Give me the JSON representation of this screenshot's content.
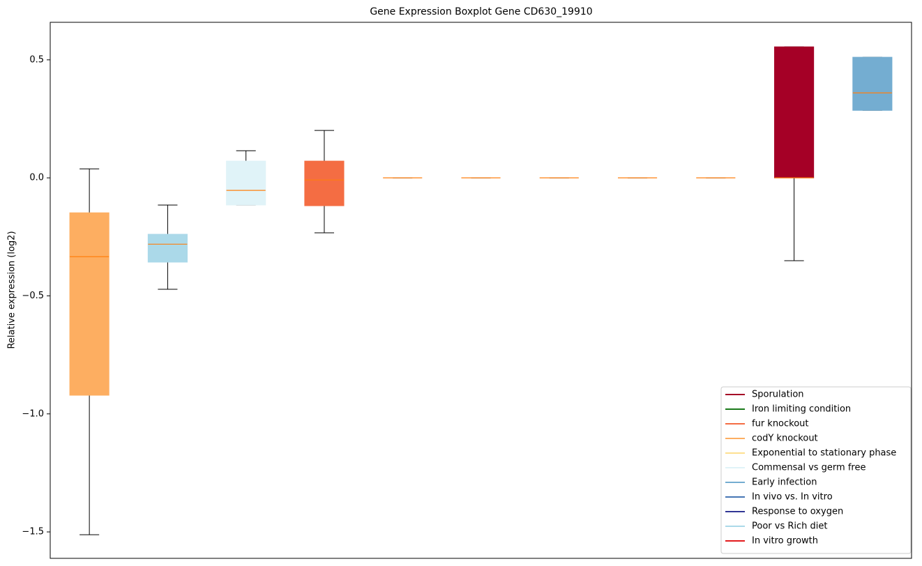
{
  "chart_data": {
    "type": "boxplot",
    "title": "Gene Expression Boxplot Gene CD630_19910",
    "y_label": "Relative expression (log2)",
    "ylim": [
      -1.612,
      0.659
    ],
    "yticks": [
      {
        "value": -1.5,
        "label": "−1.5"
      },
      {
        "value": -1.0,
        "label": "−1.0"
      },
      {
        "value": -0.5,
        "label": "−0.5"
      },
      {
        "value": 0,
        "label": "0.0"
      },
      0.5
    ],
    "median_color": "#ff7f0e",
    "boxes": [
      {
        "color": "#fdae61",
        "whisker_low": -1.512,
        "q1": -0.921,
        "median": -0.334,
        "q3": -0.148,
        "whisker_high": 0.038
      },
      {
        "color": "#abd9e9",
        "whisker_low": -0.472,
        "q1": -0.357,
        "median": -0.281,
        "q3": -0.239,
        "whisker_high": -0.115
      },
      {
        "color": "#e0f3f8",
        "whisker_low": -0.115,
        "q1": -0.115,
        "median": -0.053,
        "q3": 0.071,
        "whisker_high": 0.115
      },
      {
        "color": "#f46d43",
        "whisker_low": -0.233,
        "q1": -0.118,
        "median": -0.009,
        "q3": 0.071,
        "whisker_high": 0.201
      },
      {
        "color": "#fee090",
        "whisker_low": 0,
        "q1": 0,
        "median": 0,
        "q3": 0,
        "whisker_high": 0
      },
      {
        "color": "#fee090",
        "whisker_low": 0,
        "q1": 0,
        "median": 0,
        "q3": 0,
        "whisker_high": 0
      },
      {
        "color": "#fee090",
        "whisker_low": 0,
        "q1": 0,
        "median": 0,
        "q3": 0,
        "whisker_high": 0
      },
      {
        "color": "#fee090",
        "whisker_low": 0,
        "q1": 0,
        "median": 0,
        "q3": 0,
        "whisker_high": 0
      },
      {
        "color": "#fee090",
        "whisker_low": 0,
        "q1": 0,
        "median": 0,
        "q3": 0,
        "whisker_high": 0
      },
      {
        "color": "#a50026",
        "whisker_low": -0.351,
        "q1": 0,
        "median": 0,
        "q3": 0.555,
        "whisker_high": 0.555
      },
      {
        "color": "#74add1",
        "whisker_low": 0.286,
        "q1": 0.286,
        "median": 0.36,
        "q3": 0.511,
        "whisker_high": 0.511
      }
    ],
    "legend_position": "lower right",
    "legend": [
      {
        "label": "Sporulation",
        "color": "#a50026"
      },
      {
        "label": "Iron limiting condition",
        "color": "#1a7a1a"
      },
      {
        "label": "fur knockout",
        "color": "#f46d43"
      },
      {
        "label": "codY knockout",
        "color": "#fdae61"
      },
      {
        "label": "Exponential to stationary phase",
        "color": "#fee090"
      },
      {
        "label": "Commensal vs germ free",
        "color": "#e0f3f8"
      },
      {
        "label": "Early infection",
        "color": "#74add1"
      },
      {
        "label": "In vivo vs. In vitro",
        "color": "#4575b4"
      },
      {
        "label": "Response to oxygen",
        "color": "#313695"
      },
      {
        "label": "Poor vs Rich diet",
        "color": "#abd9e9"
      },
      {
        "label": "In vitro growth",
        "color": "#e31a1c"
      }
    ]
  }
}
